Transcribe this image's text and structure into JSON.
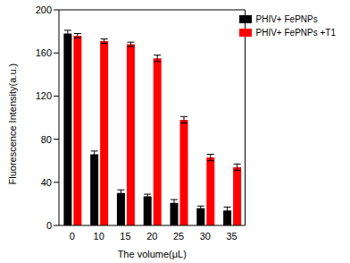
{
  "chart_data": {
    "type": "bar",
    "x_label": "The  volume(μL)",
    "y_label": "Fluorescence Intensity(a.u.)",
    "categories": [
      "0",
      "10",
      "15",
      "20",
      "25",
      "30",
      "35"
    ],
    "series": [
      {
        "name": "PHIV+ FePNPs",
        "color": "#000000",
        "values": [
          178,
          66,
          30,
          27,
          21,
          16,
          14
        ],
        "errors": [
          3,
          3,
          3,
          2,
          3,
          2,
          3
        ]
      },
      {
        "name": "PHIV+ FePNPs +T1",
        "color": "#ff0000",
        "values": [
          176,
          171,
          168,
          155,
          98,
          63,
          54
        ],
        "errors": [
          2,
          2,
          2,
          3,
          3,
          3,
          3
        ]
      }
    ],
    "ylim": [
      0,
      200
    ],
    "yticks": [
      0,
      40,
      80,
      120,
      160,
      200
    ],
    "grid": false,
    "legend": "upper right"
  }
}
